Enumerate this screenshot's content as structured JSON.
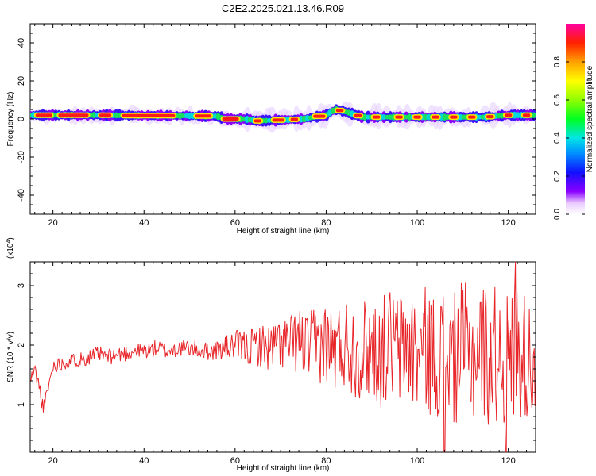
{
  "title": "C2E2.2025.021.13.46.R09",
  "chart_data": [
    {
      "type": "heatmap",
      "xlabel": "Height of straight line (km)",
      "ylabel": "Frequency (Hz)",
      "xlim": [
        15,
        126
      ],
      "ylim": [
        -50,
        50
      ],
      "xticks": [
        20,
        40,
        60,
        80,
        100,
        120
      ],
      "yticks": [
        40,
        20,
        0,
        -20,
        -40
      ],
      "colorbar": {
        "label": "Normalized spectral amplitude",
        "range": [
          0,
          1
        ],
        "ticks": [
          "0.0",
          "0.2",
          "0.4",
          "0.6",
          "0.8"
        ]
      },
      "ridge_frequency_hz": [
        {
          "height_km": 15,
          "freq_hz": 2
        },
        {
          "height_km": 30,
          "freq_hz": 2
        },
        {
          "height_km": 56,
          "freq_hz": 1.5
        },
        {
          "height_km": 58,
          "freq_hz": 0
        },
        {
          "height_km": 62,
          "freq_hz": 0
        },
        {
          "height_km": 65,
          "freq_hz": -1
        },
        {
          "height_km": 75,
          "freq_hz": 0
        },
        {
          "height_km": 80,
          "freq_hz": 2
        },
        {
          "height_km": 82,
          "freq_hz": 5
        },
        {
          "height_km": 84,
          "freq_hz": 4
        },
        {
          "height_km": 88,
          "freq_hz": 1
        },
        {
          "height_km": 95,
          "freq_hz": 1
        },
        {
          "height_km": 105,
          "freq_hz": 1
        },
        {
          "height_km": 115,
          "freq_hz": 1
        },
        {
          "height_km": 120,
          "freq_hz": 2
        },
        {
          "height_km": 126,
          "freq_hz": 2
        }
      ]
    },
    {
      "type": "line",
      "xlabel": "Height of straight line (km)",
      "ylabel": "SNR (10 * v/v)",
      "y_multiplier": "(x10^4)",
      "y_multiplier_base": "(x10",
      "y_multiplier_exp": "4",
      "y_multiplier_close": ")",
      "xlim": [
        15,
        126
      ],
      "ylim": [
        0.2,
        3.4
      ],
      "xticks": [
        20,
        40,
        60,
        80,
        100,
        120
      ],
      "yticks": [
        1,
        2,
        3
      ],
      "series": [
        {
          "name": "SNR",
          "color": "#e8262a",
          "x": [
            15,
            16,
            17,
            18,
            20,
            22,
            25,
            28,
            30,
            32,
            35,
            38,
            40,
            43,
            45,
            48,
            50,
            53,
            55,
            58,
            60,
            63,
            65,
            68,
            70,
            72,
            74,
            76,
            78,
            80,
            82,
            84,
            86,
            88,
            90,
            92,
            94,
            96,
            98,
            100,
            102,
            104,
            106,
            108,
            110,
            112,
            114,
            116,
            118,
            120,
            122,
            124,
            126
          ],
          "y": [
            1.4,
            1.6,
            1.3,
            0.95,
            1.65,
            1.7,
            1.75,
            1.8,
            1.85,
            1.8,
            1.85,
            1.9,
            1.9,
            1.95,
            1.9,
            1.95,
            1.95,
            1.9,
            1.9,
            1.95,
            2.0,
            1.95,
            2.0,
            1.95,
            2.05,
            2.0,
            2.1,
            1.95,
            2.0,
            2.05,
            1.9,
            2.05,
            1.95,
            1.9,
            2.0,
            1.85,
            2.05,
            1.9,
            2.0,
            1.85,
            1.95,
            1.8,
            1.9,
            1.75,
            1.95,
            1.8,
            2.0,
            1.75,
            1.9,
            1.7,
            2.0,
            1.8,
            1.9
          ],
          "amplitude_envelope": [
            [
              15,
              0.12
            ],
            [
              55,
              0.15
            ],
            [
              60,
              0.25
            ],
            [
              70,
              0.45
            ],
            [
              80,
              0.7
            ],
            [
              90,
              0.9
            ],
            [
              105,
              1.1
            ],
            [
              118,
              1.2
            ],
            [
              126,
              1.1
            ]
          ],
          "notable_points": [
            {
              "x": 17.5,
              "y": 0.95
            },
            {
              "x": 106,
              "y": 0.2
            },
            {
              "x": 119.5,
              "y": 0.2
            },
            {
              "x": 121.5,
              "y": 3.4
            }
          ]
        }
      ]
    }
  ]
}
